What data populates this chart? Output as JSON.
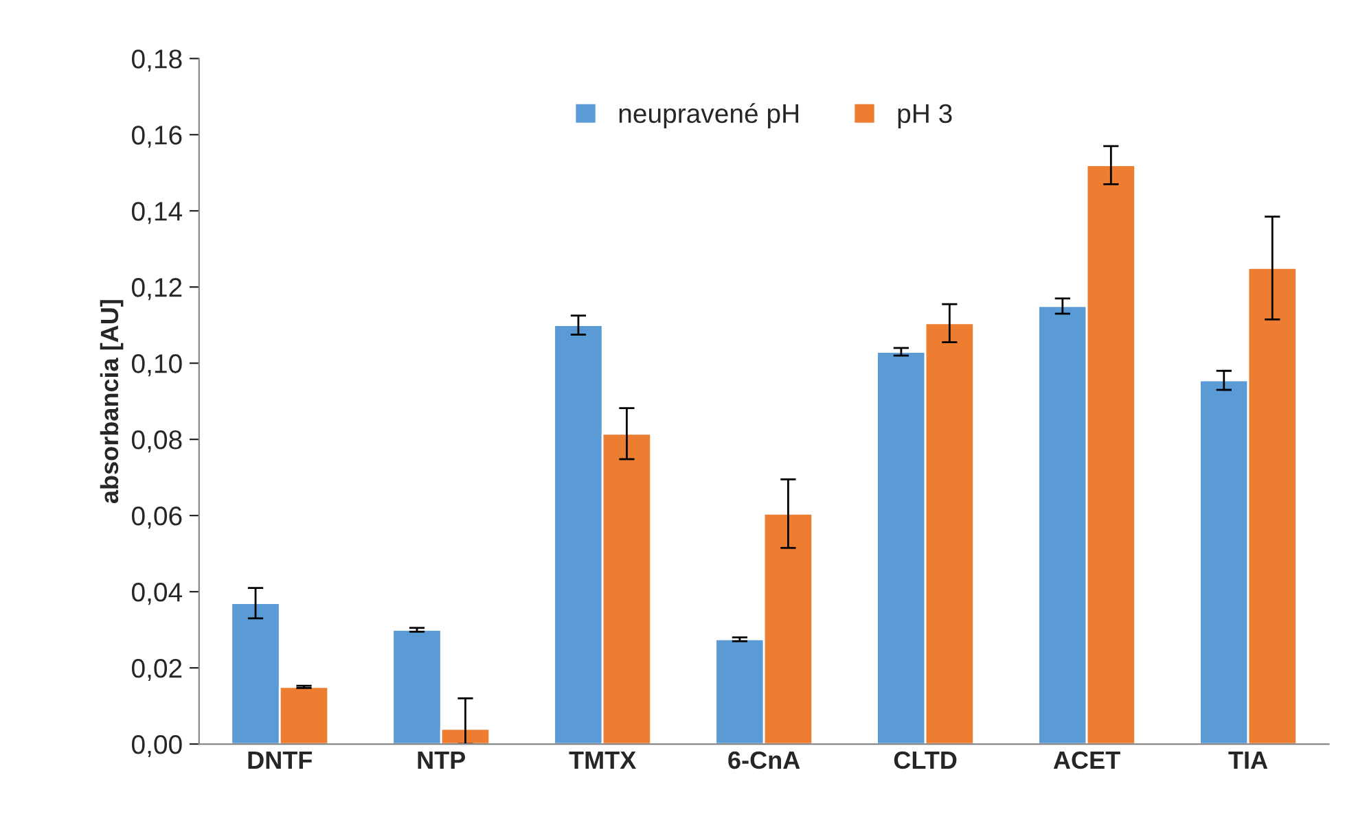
{
  "chart_data": {
    "type": "bar",
    "ylabel": "absorbancia [AU]",
    "categories": [
      "DNTF",
      "NTP",
      "TMTX",
      "6-CnA",
      "CLTD",
      "ACET",
      "TIA"
    ],
    "series": [
      {
        "name": "neupravené pH",
        "color": "#5b9bd5",
        "values": [
          0.037,
          0.03,
          0.11,
          0.0275,
          0.103,
          0.115,
          0.0955
        ],
        "errors": [
          0.004,
          0.0005,
          0.0025,
          0.0005,
          0.001,
          0.002,
          0.0025
        ]
      },
      {
        "name": "pH 3",
        "color": "#ed7d31",
        "values": [
          0.015,
          0.004,
          0.0815,
          0.0605,
          0.1105,
          0.152,
          0.125
        ],
        "errors": [
          0.0003,
          [
            0.0,
            0.012
          ],
          0.0067,
          0.009,
          0.005,
          0.005,
          0.0135
        ]
      }
    ],
    "ylim": [
      0,
      0.18
    ],
    "yticks": [
      {
        "value": 0,
        "label": "0,00"
      },
      {
        "value": 0.02,
        "label": "0,02"
      },
      {
        "value": 0.04,
        "label": "0,04"
      },
      {
        "value": 0.06,
        "label": "0,06"
      },
      {
        "value": 0.08,
        "label": "0,08"
      },
      {
        "value": 0.1,
        "label": "0,10"
      },
      {
        "value": 0.12,
        "label": "0,12"
      },
      {
        "value": 0.14,
        "label": "0,14"
      },
      {
        "value": 0.16,
        "label": "0,16"
      },
      {
        "value": 0.18,
        "label": "0,18"
      }
    ],
    "grid": false,
    "legend": "top"
  }
}
